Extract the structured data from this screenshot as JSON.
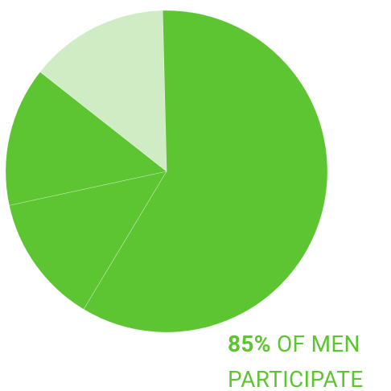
{
  "chart_data": {
    "type": "pie",
    "categories": [
      null,
      null,
      null,
      null
    ],
    "values": [
      59,
      13,
      14,
      14
    ],
    "colors": [
      "#5cc531",
      "#5cc531",
      "#5cc531",
      "#cfecc4"
    ],
    "annotation": {
      "highlight": "85%",
      "text": "OF MEN PARTICIPATE"
    }
  }
}
